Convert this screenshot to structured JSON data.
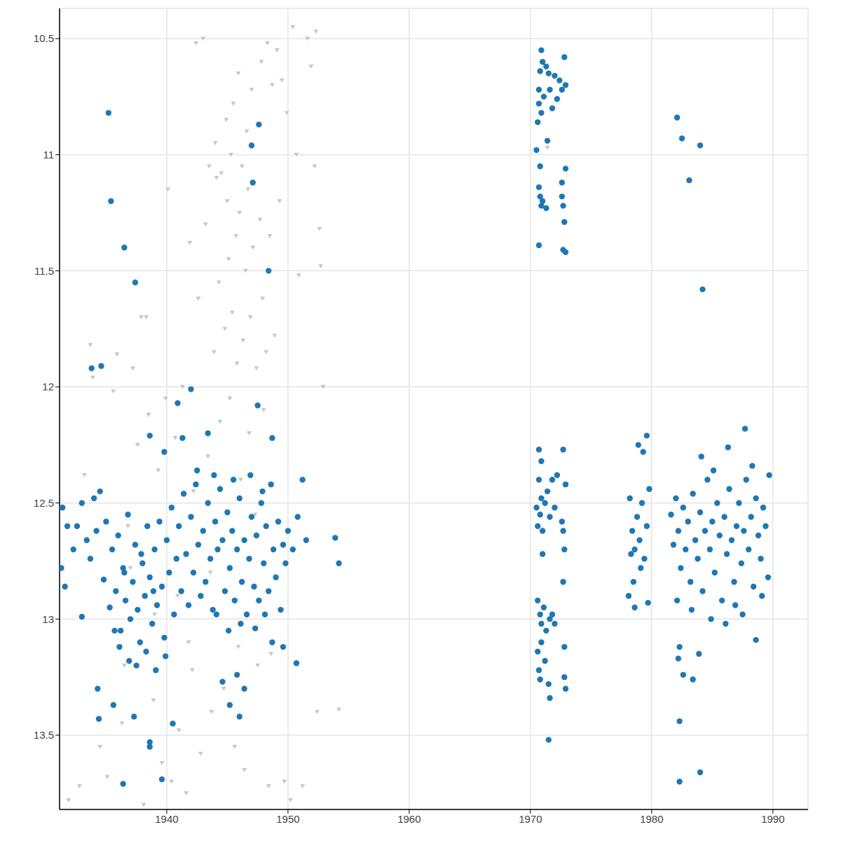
{
  "chart_data": {
    "type": "scatter",
    "xlim": [
      1931.16,
      1992.9
    ],
    "ylim": [
      10.37,
      13.82
    ],
    "xticks": [
      1940,
      1950,
      1960,
      1970,
      1980,
      1990
    ],
    "yticks": [
      10.5,
      11,
      11.5,
      12,
      12.5,
      13,
      13.5
    ],
    "grid": true,
    "y_inverted": true,
    "series": [
      {
        "color": "#c8c8c8",
        "marker": "triangle_down",
        "x": [
          1931.9,
          1932.8,
          1933.2,
          1933.7,
          1933.9,
          1934.5,
          1935.1,
          1935.6,
          1935.9,
          1936.3,
          1936.8,
          1937.2,
          1937.6,
          1937.9,
          1938.1,
          1938.5,
          1938.9,
          1939.3,
          1939.6,
          1939.9,
          1940.1,
          1940.4,
          1940.7,
          1941.0,
          1941.3,
          1941.6,
          1941.9,
          1942.2,
          1942.4,
          1942.6,
          1942.8,
          1943.0,
          1943.2,
          1943.4,
          1943.5,
          1943.7,
          1943.9,
          1944.0,
          1944.1,
          1944.3,
          1944.4,
          1944.5,
          1944.7,
          1944.8,
          1944.9,
          1945.0,
          1945.1,
          1945.2,
          1945.3,
          1945.4,
          1945.5,
          1945.6,
          1945.7,
          1945.8,
          1945.9,
          1946.0,
          1946.1,
          1946.2,
          1946.3,
          1946.4,
          1946.5,
          1946.6,
          1946.7,
          1946.8,
          1946.9,
          1947.0,
          1947.1,
          1947.3,
          1947.4,
          1947.5,
          1947.7,
          1947.8,
          1947.9,
          1948.0,
          1948.2,
          1948.3,
          1948.4,
          1948.5,
          1948.7,
          1948.9,
          1949.1,
          1949.3,
          1949.5,
          1949.7,
          1949.9,
          1950.2,
          1950.4,
          1950.7,
          1950.9,
          1951.2,
          1951.6,
          1951.9,
          1952.2,
          1952.4,
          1952.6,
          1952.7,
          1952.9,
          1954.2,
          1952.3,
          1938.3,
          1937.0,
          1941.8,
          1943.6,
          1945.9,
          1940.9,
          1939.0,
          1942.1,
          1944.2,
          1936.5,
          1948.6,
          1971.4
        ],
        "values": [
          13.78,
          13.72,
          12.38,
          11.82,
          11.96,
          13.55,
          13.68,
          12.02,
          11.86,
          13.45,
          12.6,
          11.92,
          12.25,
          11.7,
          13.8,
          12.12,
          13.35,
          12.36,
          13.62,
          12.05,
          11.15,
          13.7,
          12.22,
          13.48,
          12.0,
          13.75,
          11.38,
          12.45,
          10.52,
          11.62,
          13.58,
          10.5,
          11.3,
          12.3,
          11.05,
          13.4,
          11.85,
          10.95,
          11.1,
          11.55,
          12.15,
          11.08,
          13.3,
          11.75,
          10.85,
          11.2,
          11.45,
          12.05,
          11.0,
          11.68,
          10.78,
          13.55,
          11.35,
          11.9,
          10.65,
          11.25,
          12.4,
          11.05,
          11.8,
          13.65,
          11.5,
          10.9,
          11.15,
          12.2,
          11.7,
          10.72,
          11.4,
          12.55,
          11.92,
          13.2,
          11.28,
          10.6,
          11.62,
          12.1,
          11.85,
          10.52,
          13.72,
          11.35,
          10.7,
          11.78,
          10.55,
          11.2,
          10.68,
          13.7,
          10.82,
          13.78,
          10.45,
          11.0,
          11.52,
          13.72,
          10.5,
          10.62,
          11.05,
          13.4,
          11.32,
          11.48,
          12.0,
          13.39,
          10.47,
          11.7,
          12.78,
          13.1,
          12.8,
          13.12,
          12.9,
          12.98,
          13.22,
          12.7,
          13.2,
          13.15,
          10.97
        ]
      },
      {
        "color": "#1f77b4",
        "marker": "circle",
        "x": [
          1931.4,
          1931.8,
          1932.3,
          1932.6,
          1933.0,
          1933.4,
          1933.7,
          1934.0,
          1934.2,
          1934.5,
          1934.8,
          1935.0,
          1935.3,
          1935.5,
          1935.8,
          1936.0,
          1936.2,
          1936.4,
          1936.6,
          1936.8,
          1937.0,
          1937.2,
          1937.4,
          1937.6,
          1937.8,
          1938.0,
          1938.2,
          1938.4,
          1938.6,
          1938.8,
          1939.0,
          1939.2,
          1939.4,
          1939.6,
          1939.8,
          1940.0,
          1940.2,
          1940.4,
          1940.6,
          1940.8,
          1941.0,
          1941.2,
          1941.4,
          1941.6,
          1941.8,
          1942.0,
          1942.2,
          1942.4,
          1942.6,
          1942.8,
          1943.0,
          1943.2,
          1943.4,
          1943.6,
          1943.8,
          1944.0,
          1944.2,
          1944.4,
          1944.6,
          1944.8,
          1945.0,
          1945.2,
          1945.4,
          1945.6,
          1945.8,
          1946.0,
          1946.2,
          1946.4,
          1946.6,
          1946.8,
          1947.0,
          1947.2,
          1947.4,
          1947.6,
          1947.8,
          1948.0,
          1948.2,
          1948.4,
          1948.6,
          1948.8,
          1949.0,
          1949.2,
          1949.4,
          1949.6,
          1949.8,
          1950.0,
          1950.4,
          1950.8,
          1951.2,
          1951.5,
          1936.1,
          1936.9,
          1937.5,
          1938.3,
          1939.1,
          1939.9,
          1937.9,
          1938.9,
          1935.7,
          1936.5,
          1942.5,
          1943.9,
          1945.5,
          1946.9,
          1947.9,
          1944.1,
          1945.1,
          1946.1,
          1947.3,
          1948.1,
          1935.2,
          1935.4,
          1936.5,
          1937.4,
          1933.8,
          1934.6,
          1947.6,
          1947.0,
          1947.1,
          1948.4,
          1942.0,
          1940.9,
          1947.5,
          1943.4,
          1941.3,
          1948.7,
          1938.6,
          1939.8,
          1950.7,
          1953.9,
          1954.2,
          1933.0,
          1931.3,
          1931.6,
          1936.4,
          1939.6,
          1938.6,
          1938.6,
          1940.5,
          1934.4,
          1935.6,
          1934.3,
          1937.3,
          1944.6,
          1945.8,
          1946.4,
          1948.7,
          1949.6,
          1945.2,
          1946.0,
          1970.5,
          1970.6,
          1970.7,
          1970.8,
          1970.9,
          1971.0,
          1970.7,
          1970.9,
          1971.1,
          1971.3,
          1971.4,
          1971.6,
          1971.8,
          1972.0,
          1972.2,
          1972.4,
          1972.6,
          1972.8,
          1972.9,
          1971.5,
          1970.8,
          1970.7,
          1970.8,
          1970.9,
          1971.0,
          1971.3,
          1970.7,
          1972.6,
          1972.7,
          1972.8,
          1972.9,
          1972.7,
          1972.9,
          1972.6,
          1970.5,
          1970.6,
          1970.7,
          1970.8,
          1970.9,
          1971.0,
          1971.2,
          1971.4,
          1971.6,
          1971.8,
          1972.0,
          1972.2,
          1970.7,
          1970.9,
          1972.7,
          1972.6,
          1972.7,
          1972.9,
          1971.0,
          1972.8,
          1970.6,
          1970.8,
          1970.9,
          1971.1,
          1971.3,
          1971.6,
          1971.8,
          1972.0,
          1970.6,
          1970.7,
          1970.8,
          1971.5,
          1971.6,
          1971.5,
          1972.8,
          1972.8,
          1972.9,
          1972.7,
          1970.9,
          1971.2,
          1978.2,
          1978.4,
          1978.6,
          1978.8,
          1979.0,
          1979.2,
          1979.4,
          1979.6,
          1979.8,
          1978.5,
          1978.9,
          1979.3,
          1979.6,
          1978.1,
          1978.6,
          1979.7,
          1979.1,
          1978.3,
          1981.6,
          1981.8,
          1982.0,
          1982.2,
          1982.4,
          1982.6,
          1982.8,
          1983.0,
          1983.2,
          1983.4,
          1983.6,
          1983.8,
          1984.0,
          1984.2,
          1984.4,
          1984.6,
          1984.8,
          1985.0,
          1985.2,
          1985.4,
          1985.6,
          1985.8,
          1986.0,
          1986.2,
          1986.4,
          1986.6,
          1986.8,
          1987.0,
          1987.2,
          1987.4,
          1987.6,
          1987.8,
          1988.0,
          1988.2,
          1988.4,
          1988.6,
          1988.8,
          1989.0,
          1989.2,
          1989.4,
          1989.6,
          1989.7,
          1982.1,
          1983.3,
          1984.1,
          1985.1,
          1986.9,
          1987.5,
          1988.3,
          1984.9,
          1986.1,
          1989.1,
          1982.1,
          1982.5,
          1983.1,
          1984.0,
          1984.2,
          1982.3,
          1982.2,
          1982.6,
          1983.4,
          1983.9,
          1982.3,
          1982.3,
          1984.0,
          1988.6,
          1987.7,
          1986.3
        ],
        "values": [
          12.52,
          12.6,
          12.7,
          12.6,
          12.5,
          12.66,
          12.74,
          12.48,
          12.62,
          12.45,
          12.83,
          12.58,
          12.95,
          12.7,
          12.88,
          12.64,
          13.05,
          12.78,
          12.92,
          12.55,
          13.0,
          12.84,
          12.68,
          12.96,
          13.1,
          12.76,
          12.9,
          12.6,
          12.82,
          13.02,
          12.7,
          12.94,
          12.58,
          12.86,
          13.08,
          12.66,
          12.8,
          12.52,
          12.98,
          12.74,
          12.6,
          12.88,
          12.46,
          12.72,
          12.94,
          12.56,
          12.8,
          12.42,
          12.68,
          12.9,
          12.62,
          12.84,
          12.5,
          12.74,
          12.96,
          12.58,
          12.7,
          12.44,
          12.66,
          12.88,
          12.54,
          12.78,
          12.62,
          12.92,
          12.7,
          12.48,
          12.84,
          12.66,
          12.98,
          12.74,
          12.56,
          12.86,
          12.64,
          12.92,
          12.5,
          12.76,
          12.6,
          12.88,
          12.42,
          12.7,
          12.82,
          12.58,
          12.96,
          12.68,
          12.76,
          12.62,
          12.7,
          12.56,
          12.4,
          12.66,
          13.12,
          13.18,
          13.2,
          13.14,
          13.22,
          13.16,
          12.72,
          12.88,
          13.05,
          12.8,
          12.36,
          12.38,
          12.4,
          12.38,
          12.45,
          12.98,
          13.05,
          13.02,
          13.04,
          12.98,
          10.82,
          11.2,
          11.4,
          11.55,
          11.92,
          11.91,
          10.87,
          10.96,
          11.12,
          11.5,
          12.01,
          12.07,
          12.08,
          12.2,
          12.22,
          12.22,
          12.21,
          12.28,
          13.19,
          12.65,
          12.76,
          12.99,
          12.78,
          12.86,
          13.71,
          13.69,
          13.53,
          13.55,
          13.45,
          13.43,
          13.37,
          13.3,
          13.42,
          13.27,
          13.24,
          13.3,
          13.1,
          13.12,
          13.37,
          13.42,
          10.98,
          10.86,
          10.72,
          10.64,
          10.55,
          10.6,
          10.78,
          10.82,
          10.75,
          10.62,
          10.94,
          10.72,
          10.8,
          10.66,
          10.76,
          10.68,
          10.72,
          10.58,
          10.7,
          10.65,
          11.05,
          11.14,
          11.18,
          11.22,
          11.2,
          11.23,
          11.39,
          11.18,
          11.22,
          11.29,
          11.06,
          11.41,
          11.42,
          11.12,
          12.52,
          12.6,
          12.4,
          12.55,
          12.48,
          12.62,
          12.5,
          12.45,
          12.56,
          12.4,
          12.52,
          12.38,
          12.27,
          12.32,
          12.27,
          12.58,
          12.62,
          12.42,
          12.72,
          12.7,
          12.92,
          12.98,
          13.02,
          12.95,
          13.05,
          13.0,
          12.98,
          13.02,
          13.14,
          13.22,
          13.26,
          13.28,
          13.34,
          13.52,
          13.12,
          13.25,
          13.3,
          12.84,
          13.1,
          13.18,
          12.48,
          12.62,
          12.7,
          12.56,
          12.66,
          12.5,
          12.74,
          12.6,
          12.44,
          12.84,
          12.25,
          12.28,
          12.21,
          12.9,
          12.95,
          12.93,
          12.78,
          12.72,
          12.55,
          12.68,
          12.48,
          12.62,
          12.78,
          12.52,
          12.7,
          12.58,
          12.84,
          12.46,
          12.66,
          12.74,
          12.54,
          12.88,
          12.62,
          12.4,
          12.7,
          12.58,
          12.8,
          12.5,
          12.64,
          12.92,
          12.56,
          12.72,
          12.44,
          12.66,
          12.84,
          12.6,
          12.5,
          12.76,
          12.62,
          12.4,
          12.7,
          12.56,
          12.86,
          12.48,
          12.64,
          12.74,
          12.52,
          12.6,
          12.82,
          12.38,
          12.92,
          12.96,
          12.3,
          12.36,
          12.94,
          12.98,
          12.34,
          13.0,
          13.02,
          12.9,
          10.84,
          10.93,
          11.11,
          10.96,
          11.58,
          13.12,
          13.17,
          13.24,
          13.26,
          13.15,
          13.44,
          13.7,
          13.66,
          13.09,
          12.18,
          12.26
        ]
      }
    ]
  }
}
